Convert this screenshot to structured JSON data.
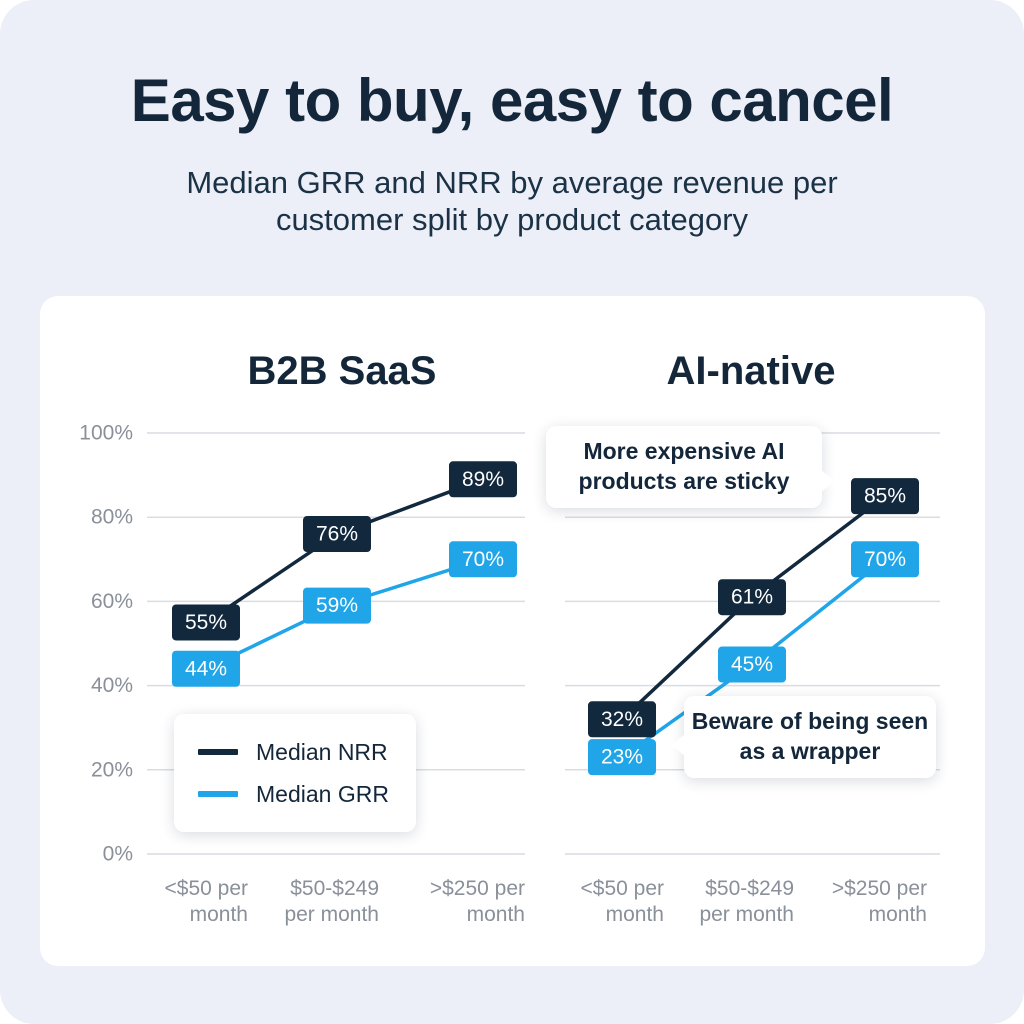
{
  "title": "Easy to buy, easy to cancel",
  "subtitle": "Median GRR and NRR by average revenue per customer split by product category",
  "colors": {
    "nrr": "#12283d",
    "grr": "#1fa5e8",
    "grid": "#d9dce2",
    "axis_text": "#8a909a",
    "background": "#eceff8"
  },
  "legend": [
    {
      "name": "Median NRR",
      "color": "#12283d"
    },
    {
      "name": "Median GRR",
      "color": "#1fa5e8"
    }
  ],
  "annotations": {
    "ai_high": "More expensive AI products are sticky",
    "ai_low": "Beware of being seen as a wrapper"
  },
  "chart_data": [
    {
      "type": "line",
      "title": "B2B SaaS",
      "categories": [
        [
          "<$50 per",
          "month"
        ],
        [
          "$50-$249",
          "per month"
        ],
        [
          ">$250 per",
          "month"
        ]
      ],
      "series": [
        {
          "name": "Median NRR",
          "values": [
            55,
            76,
            89
          ]
        },
        {
          "name": "Median GRR",
          "values": [
            44,
            59,
            70
          ]
        }
      ],
      "ylim": [
        0,
        100
      ],
      "yticks": [
        "0%",
        "20%",
        "40%",
        "60%",
        "80%",
        "100%"
      ],
      "grid": true,
      "legend_position": "bottom-left"
    },
    {
      "type": "line",
      "title": "AI-native",
      "categories": [
        [
          "<$50 per",
          "month"
        ],
        [
          "$50-$249",
          "per month"
        ],
        [
          ">$250 per",
          "month"
        ]
      ],
      "series": [
        {
          "name": "Median NRR",
          "values": [
            32,
            61,
            85
          ]
        },
        {
          "name": "Median GRR",
          "values": [
            23,
            45,
            70
          ]
        }
      ],
      "ylim": [
        0,
        100
      ],
      "grid": true
    }
  ]
}
